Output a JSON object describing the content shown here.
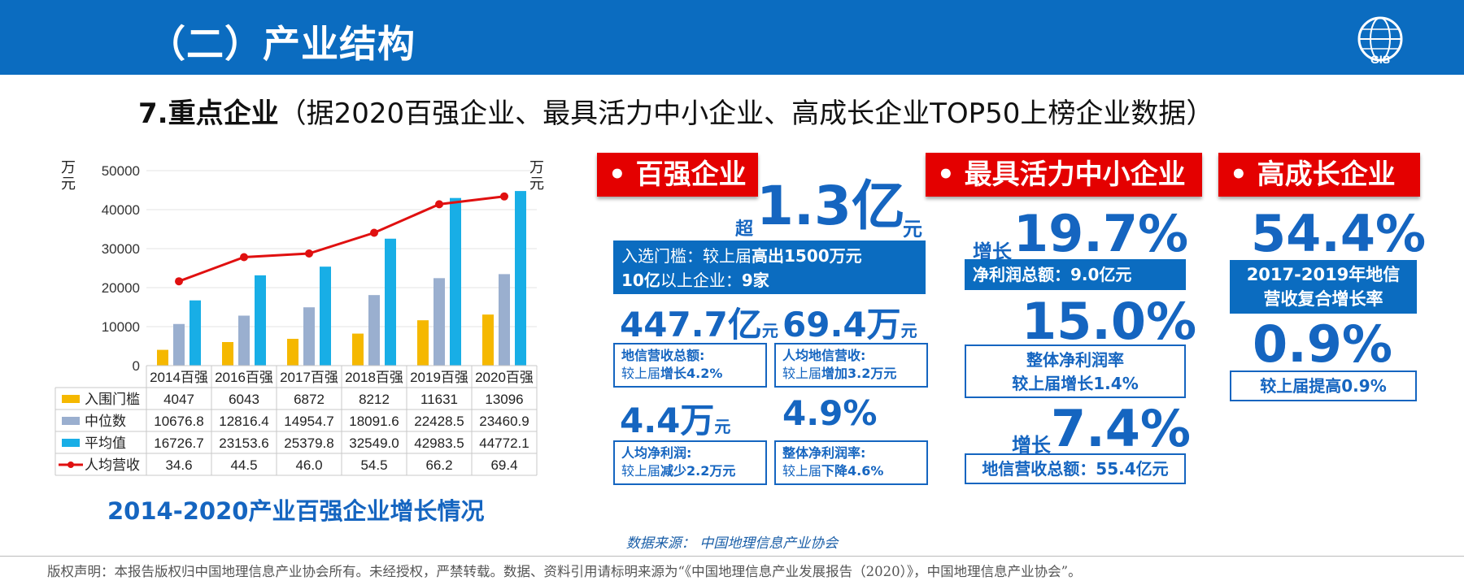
{
  "header": {
    "title": "（二）产业结构"
  },
  "subtitle": {
    "bold": "7.重点企业",
    "rest": "（据2020百强企业、最具活力中小企业、高成长企业TOP50上榜企业数据）"
  },
  "chart_caption": "2014-2020产业百强企业增长情况",
  "chart_data": {
    "type": "bar",
    "categories": [
      "2014百强",
      "2016百强",
      "2017百强",
      "2018百强",
      "2019百强",
      "2020百强"
    ],
    "series": [
      {
        "name": "入围门槛",
        "type": "bar",
        "color": "#f5b800",
        "values": [
          4047,
          6043,
          6872,
          8212,
          11631,
          13096
        ],
        "labels": [
          "4047",
          "6043",
          "6872",
          "8212",
          "11631",
          "13096"
        ]
      },
      {
        "name": "中位数",
        "type": "bar",
        "color": "#9aafcf",
        "values": [
          10676.8,
          12816.4,
          14954.7,
          18091.6,
          22428.5,
          23460.9
        ],
        "labels": [
          "10676.8",
          "12816.4",
          "14954.7",
          "18091.6",
          "22428.5",
          "23460.9"
        ]
      },
      {
        "name": "平均值",
        "type": "bar",
        "color": "#18aee6",
        "values": [
          16726.7,
          23153.6,
          25379.8,
          32549.0,
          42983.5,
          44772.1
        ],
        "labels": [
          "16726.7",
          "23153.6",
          "25379.8",
          "32549.0",
          "42983.5",
          "44772.1"
        ]
      },
      {
        "name": "人均营收",
        "type": "line",
        "axis": "right",
        "color": "#e01010",
        "values": [
          34.6,
          44.5,
          46.0,
          54.5,
          66.2,
          69.4
        ],
        "labels": [
          "34.6",
          "44.5",
          "46.0",
          "54.5",
          "66.2",
          "69.4"
        ]
      }
    ],
    "y_left": {
      "label": "万元",
      "range": [
        0,
        50000
      ],
      "ticks": [
        "0",
        "10000",
        "20000",
        "30000",
        "40000",
        "50000"
      ]
    },
    "y_right": {
      "label": "万元",
      "range": [
        0,
        80
      ],
      "ticks": [
        "0",
        "20",
        "40",
        "60",
        "80"
      ]
    },
    "legend": "table-below",
    "grid": true
  },
  "bainqiang": {
    "tag": "• 百强企业",
    "pre": "超",
    "value": "1.3亿",
    "unit": "元",
    "box_line1a": "入选门槛：较上届",
    "box_line1b": "高出1500万元",
    "box_line2a": "10亿",
    "box_line2b": "以上企业：",
    "box_line2c": "9家",
    "m1": {
      "value": "447.7亿",
      "unit": "元",
      "label": "地信营收总额:",
      "desc_a": "较上届",
      "desc_b": "增长4.2%"
    },
    "m2": {
      "value": "69.4万",
      "unit": "元",
      "label": "人均地信营收:",
      "desc_a": "较上届",
      "desc_b": "增加3.2万元"
    },
    "m3": {
      "value": "4.4万",
      "unit": "元",
      "label": "人均净利润:",
      "desc_a": "较上届",
      "desc_b": "减少2.2万元"
    },
    "m4": {
      "value": "4.9%",
      "label": "整体净利润率:",
      "desc_a": "较上届",
      "desc_b": "下降4.6%"
    }
  },
  "huoli": {
    "tag": "• 最具活力中小企业",
    "pre1": "增长",
    "v1": "19.7%",
    "box1": "净利润总额：9.0亿元",
    "v2": "15.0%",
    "box2_l1": "整体净利润率",
    "box2_l2": "较上届增长1.4%",
    "pre3": "增长",
    "v3": "7.4%",
    "box3": "地信营收总额：55.4亿元"
  },
  "gaochengzhang": {
    "tag": "• 高成长企业",
    "v1": "54.4%",
    "box1_l1": "2017-2019年地信",
    "box1_l2": "营收复合增长率",
    "v2": "0.9%",
    "box2": "较上届提高0.9%"
  },
  "source": "数据来源：  中国地理信息产业协会",
  "copyright": "版权声明：本报告版权归中国地理信息产业协会所有。未经授权，严禁转载。数据、资料引用请标明来源为“《中国地理信息产业发展报告（2020）》，中国地理信息产业协会”。",
  "logo_text": "GIS"
}
